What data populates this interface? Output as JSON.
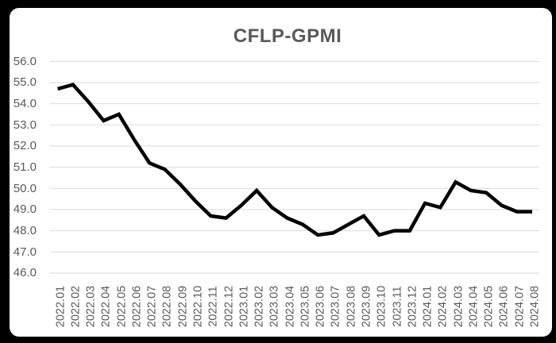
{
  "chart_data": {
    "type": "line",
    "title": "CFLP-GPMI",
    "categories": [
      "2022.01",
      "2022.02",
      "2022.03",
      "2022.04",
      "2022.05",
      "2022.06",
      "2022.07",
      "2022.08",
      "2022.09",
      "2022.10",
      "2022.11",
      "2022.12",
      "2023.01",
      "2023.02",
      "2023.03",
      "2023.04",
      "2023.05",
      "2023.06",
      "2023.07",
      "2023.08",
      "2023.09",
      "2023.10",
      "2023.11",
      "2023.12",
      "2024.01",
      "2024.02",
      "2024.03",
      "2024.04",
      "2024.05",
      "2024.06",
      "2024.07",
      "2024.08"
    ],
    "values": [
      54.7,
      54.9,
      54.1,
      53.2,
      53.5,
      52.3,
      51.2,
      50.9,
      50.2,
      49.4,
      48.7,
      48.6,
      49.2,
      49.9,
      49.1,
      48.6,
      48.3,
      47.8,
      47.9,
      48.3,
      48.7,
      47.8,
      48.0,
      48.0,
      49.3,
      49.1,
      50.3,
      49.9,
      49.8,
      49.2,
      48.9,
      48.9
    ],
    "ytick_labels": [
      "56.0",
      "55.0",
      "54.0",
      "53.0",
      "52.0",
      "51.0",
      "50.0",
      "49.0",
      "48.0",
      "47.0",
      "46.0"
    ],
    "ylim": [
      46.0,
      56.0
    ],
    "xlabel": "",
    "ylabel": "",
    "grid": true,
    "legend": "none",
    "colors": {
      "line": "#000000",
      "gridline": "#d9d9d9",
      "axis_text": "#595959",
      "title_text": "#595959",
      "plot_background": "#ffffff",
      "page_background": "#000000"
    }
  }
}
